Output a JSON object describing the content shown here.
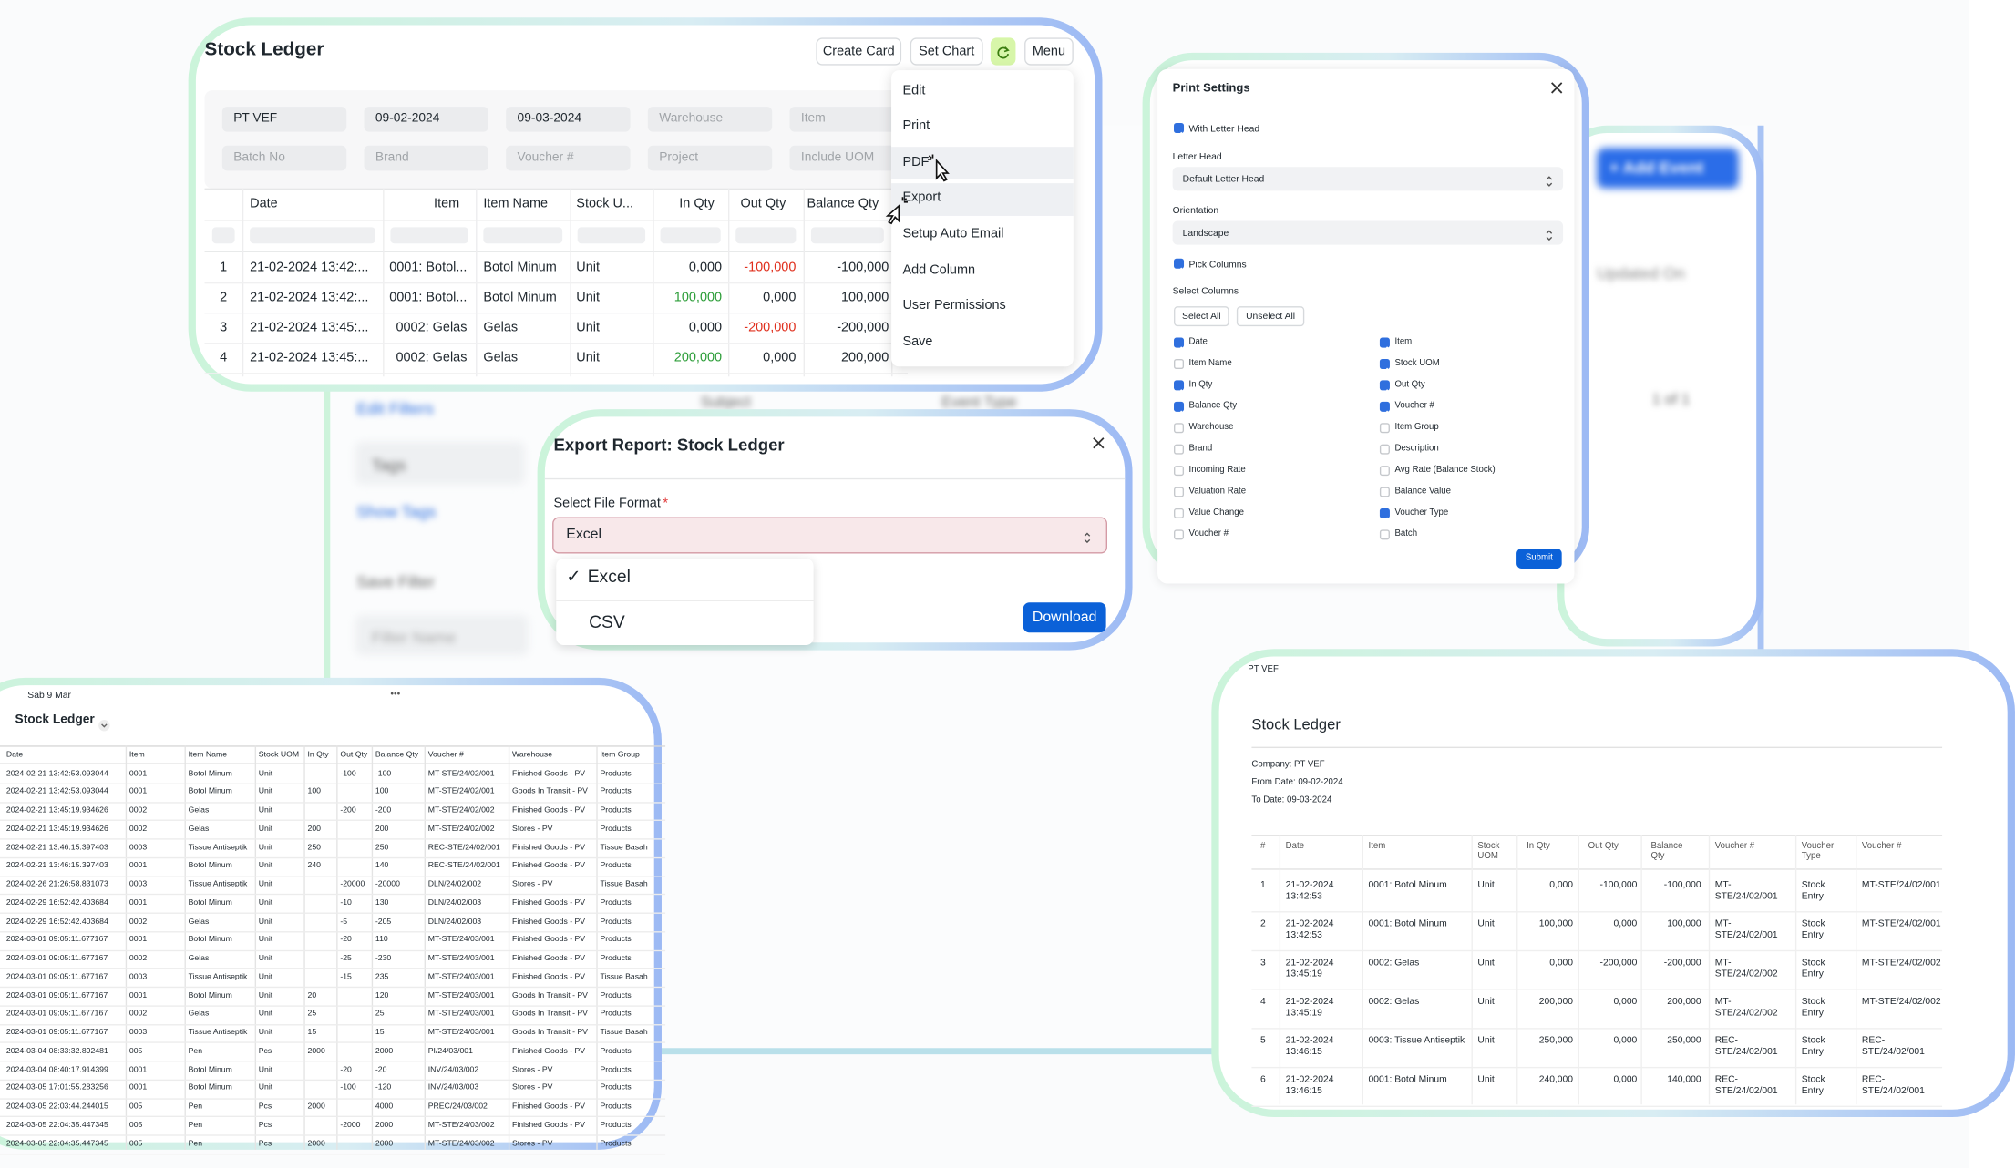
{
  "background": {
    "texts": [
      "+ Add Event",
      "Updated On",
      "Edit Filters",
      "Tags",
      "Show Tags",
      "Save Filter",
      "Filter Name",
      "Subject",
      "Event Type",
      "1 of 1"
    ]
  },
  "stock_ledger_card": {
    "title": "Stock Ledger",
    "buttons": [
      "Create Card",
      "Set Chart",
      "Menu"
    ],
    "filters": [
      [
        "PT VEF",
        "09-02-2024",
        "09-03-2024",
        "Warehouse",
        "Item"
      ],
      [
        "Batch No",
        "Brand",
        "Voucher #",
        "Project",
        "Include UOM"
      ]
    ],
    "columns": [
      "Date",
      "Item",
      "Item Name",
      "Stock U...",
      "In Qty",
      "Out Qty",
      "Balance Qty"
    ],
    "rows": [
      [
        "1",
        "21-02-2024 13:42:...",
        "0001: Botol...",
        "Botol Minum",
        "Unit",
        "0,000",
        "-100,000",
        "-100,000"
      ],
      [
        "2",
        "21-02-2024 13:42:...",
        "0001: Botol...",
        "Botol Minum",
        "Unit",
        "100,000",
        "0,000",
        "100,000"
      ],
      [
        "3",
        "21-02-2024 13:45:...",
        "0002: Gelas",
        "Gelas",
        "Unit",
        "0,000",
        "-200,000",
        "-200,000"
      ],
      [
        "4",
        "21-02-2024 13:45:...",
        "0002: Gelas",
        "Gelas",
        "Unit",
        "200,000",
        "0,000",
        "200,000"
      ]
    ],
    "menu": [
      "Edit",
      "Print",
      "PDF",
      "Export",
      "Setup Auto Email",
      "Add Column",
      "User Permissions",
      "Save"
    ]
  },
  "export_dialog": {
    "title": "Export Report: Stock Ledger",
    "label": "Select File Format",
    "required": "*",
    "selected": "Excel",
    "check": "✓",
    "options": [
      "Excel",
      "CSV"
    ],
    "button": "Download"
  },
  "print_settings": {
    "title": "Print Settings",
    "letter_head_check": "With Letter Head",
    "letter_head_label": "Letter Head",
    "letter_head_value": "Default Letter Head",
    "orientation_label": "Orientation",
    "orientation_value": "Landscape",
    "pick_columns": "Pick Columns",
    "select_columns": "Select Columns",
    "buttons": [
      "Select All",
      "Unselect All"
    ],
    "columns": [
      {
        "label": "Date",
        "checked": true
      },
      {
        "label": "Item Name",
        "checked": false
      },
      {
        "label": "In Qty",
        "checked": true
      },
      {
        "label": "Balance Qty",
        "checked": true
      },
      {
        "label": "Warehouse",
        "checked": false
      },
      {
        "label": "Brand",
        "checked": false
      },
      {
        "label": "Incoming Rate",
        "checked": false
      },
      {
        "label": "Valuation Rate",
        "checked": false
      },
      {
        "label": "Value Change",
        "checked": false
      },
      {
        "label": "Voucher #",
        "checked": false
      },
      {
        "label": "Item",
        "checked": true
      },
      {
        "label": "Stock UOM",
        "checked": true
      },
      {
        "label": "Out Qty",
        "checked": true
      },
      {
        "label": "Voucher #",
        "checked": true
      },
      {
        "label": "Item Group",
        "checked": false
      },
      {
        "label": "Description",
        "checked": false
      },
      {
        "label": "Avg Rate (Balance Stock)",
        "checked": false
      },
      {
        "label": "Balance Value",
        "checked": false
      },
      {
        "label": "Voucher Type",
        "checked": true
      },
      {
        "label": "Batch",
        "checked": false
      }
    ],
    "submit": "Submit"
  },
  "spreadsheet": {
    "date": "Sab 9 Mar",
    "dots": "•••",
    "title": "Stock Ledger",
    "columns": [
      "Date",
      "Item",
      "Item Name",
      "Stock UOM",
      "In Qty",
      "Out Qty",
      "Balance Qty",
      "Voucher #",
      "Warehouse",
      "Item Group"
    ],
    "rows": [
      [
        "2024-02-21 13:42:53.093044",
        "0001",
        "Botol Minum",
        "Unit",
        null,
        "-100",
        "-100",
        "MT-STE/24/02/001",
        "Finished Goods - PV",
        "Products"
      ],
      [
        "2024-02-21 13:42:53.093044",
        "0001",
        "Botol Minum",
        "Unit",
        "100",
        null,
        "100",
        "MT-STE/24/02/001",
        "Goods In Transit - PV",
        "Products"
      ],
      [
        "2024-02-21 13:45:19.934626",
        "0002",
        "Gelas",
        "Unit",
        null,
        "-200",
        "-200",
        "MT-STE/24/02/002",
        "Finished Goods - PV",
        "Products"
      ],
      [
        "2024-02-21 13:45:19.934626",
        "0002",
        "Gelas",
        "Unit",
        "200",
        null,
        "200",
        "MT-STE/24/02/002",
        "Stores - PV",
        "Products"
      ],
      [
        "2024-02-21 13:46:15.397403",
        "0003",
        "Tissue Antiseptik",
        "Unit",
        "250",
        null,
        "250",
        "REC-STE/24/02/001",
        "Finished Goods - PV",
        "Tissue Basah"
      ],
      [
        "2024-02-21 13:46:15.397403",
        "0001",
        "Botol Minum",
        "Unit",
        "240",
        null,
        "140",
        "REC-STE/24/02/001",
        "Finished Goods - PV",
        "Products"
      ],
      [
        "2024-02-26 21:26:58.831073",
        "0003",
        "Tissue Antiseptik",
        "Unit",
        null,
        "-20000",
        "-20000",
        "DLN/24/02/002",
        "Stores - PV",
        "Tissue Basah"
      ],
      [
        "2024-02-29 16:52:42.403684",
        "0001",
        "Botol Minum",
        "Unit",
        null,
        "-10",
        "130",
        "DLN/24/02/003",
        "Finished Goods - PV",
        "Products"
      ],
      [
        "2024-02-29 16:52:42.403684",
        "0002",
        "Gelas",
        "Unit",
        null,
        "-5",
        "-205",
        "DLN/24/02/003",
        "Finished Goods - PV",
        "Products"
      ],
      [
        "2024-03-01 09:05:11.677167",
        "0001",
        "Botol Minum",
        "Unit",
        null,
        "-20",
        "110",
        "MT-STE/24/03/001",
        "Finished Goods - PV",
        "Products"
      ],
      [
        "2024-03-01 09:05:11.677167",
        "0002",
        "Gelas",
        "Unit",
        null,
        "-25",
        "-230",
        "MT-STE/24/03/001",
        "Finished Goods - PV",
        "Products"
      ],
      [
        "2024-03-01 09:05:11.677167",
        "0003",
        "Tissue Antiseptik",
        "Unit",
        null,
        "-15",
        "235",
        "MT-STE/24/03/001",
        "Finished Goods - PV",
        "Tissue Basah"
      ],
      [
        "2024-03-01 09:05:11.677167",
        "0001",
        "Botol Minum",
        "Unit",
        "20",
        null,
        "120",
        "MT-STE/24/03/001",
        "Goods In Transit - PV",
        "Products"
      ],
      [
        "2024-03-01 09:05:11.677167",
        "0002",
        "Gelas",
        "Unit",
        "25",
        null,
        "25",
        "MT-STE/24/03/001",
        "Goods In Transit - PV",
        "Products"
      ],
      [
        "2024-03-01 09:05:11.677167",
        "0003",
        "Tissue Antiseptik",
        "Unit",
        "15",
        null,
        "15",
        "MT-STE/24/03/001",
        "Goods In Transit - PV",
        "Tissue Basah"
      ],
      [
        "2024-03-04 08:33:32.892481",
        "005",
        "Pen",
        "Pcs",
        "2000",
        null,
        "2000",
        "PI/24/03/001",
        "Finished Goods - PV",
        "Products"
      ],
      [
        "2024-03-04 08:40:17.914399",
        "0001",
        "Botol Minum",
        "Unit",
        null,
        "-20",
        "-20",
        "INV/24/03/002",
        "Stores - PV",
        "Products"
      ],
      [
        "2024-03-05 17:01:55.283256",
        "0001",
        "Botol Minum",
        "Unit",
        null,
        "-100",
        "-120",
        "INV/24/03/003",
        "Stores - PV",
        "Products"
      ],
      [
        "2024-03-05 22:03:44.244015",
        "005",
        "Pen",
        "Pcs",
        "2000",
        null,
        "4000",
        "PREC/24/03/002",
        "Finished Goods - PV",
        "Products"
      ],
      [
        "2024-03-05 22:04:35.447345",
        "005",
        "Pen",
        "Pcs",
        null,
        "-2000",
        "2000",
        "MT-STE/24/03/002",
        "Finished Goods - PV",
        "Products"
      ],
      [
        "2024-03-05 22:04:35.447345",
        "005",
        "Pen",
        "Pcs",
        "2000",
        null,
        "2000",
        "MT-STE/24/03/002",
        "Stores - PV",
        "Products"
      ]
    ]
  },
  "print_preview": {
    "company_header": "PT VEF",
    "title": "Stock Ledger",
    "meta": [
      "Company: PT VEF",
      "From Date: 09-02-2024",
      "To Date: 09-03-2024"
    ],
    "columns": [
      "#",
      "Date",
      "Item",
      "Stock UOM",
      "In Qty",
      "Out Qty",
      "Balance Qty",
      "Voucher #",
      "Voucher Type",
      "Voucher #"
    ],
    "rows": [
      [
        "1",
        "21-02-2024 13:42:53",
        "0001: Botol Minum",
        "Unit",
        "0,000",
        "-100,000",
        "-100,000",
        "MT-STE/24/02/001",
        "Stock Entry",
        "MT-STE/24/02/001"
      ],
      [
        "2",
        "21-02-2024 13:42:53",
        "0001: Botol Minum",
        "Unit",
        "100,000",
        "0,000",
        "100,000",
        "MT-STE/24/02/001",
        "Stock Entry",
        "MT-STE/24/02/001"
      ],
      [
        "3",
        "21-02-2024 13:45:19",
        "0002: Gelas",
        "Unit",
        "0,000",
        "-200,000",
        "-200,000",
        "MT-STE/24/02/002",
        "Stock Entry",
        "MT-STE/24/02/002"
      ],
      [
        "4",
        "21-02-2024 13:45:19",
        "0002: Gelas",
        "Unit",
        "200,000",
        "0,000",
        "200,000",
        "MT-STE/24/02/002",
        "Stock Entry",
        "MT-STE/24/02/002"
      ],
      [
        "5",
        "21-02-2024 13:46:15",
        "0003: Tissue Antiseptik",
        "Unit",
        "250,000",
        "0,000",
        "250,000",
        "REC-STE/24/02/001",
        "Stock Entry",
        "REC-STE/24/02/001"
      ],
      [
        "6",
        "21-02-2024 13:46:15",
        "0001: Botol Minum",
        "Unit",
        "240,000",
        "0,000",
        "140,000",
        "REC-STE/24/02/001",
        "Stock Entry",
        "REC-STE/24/02/001"
      ]
    ]
  }
}
